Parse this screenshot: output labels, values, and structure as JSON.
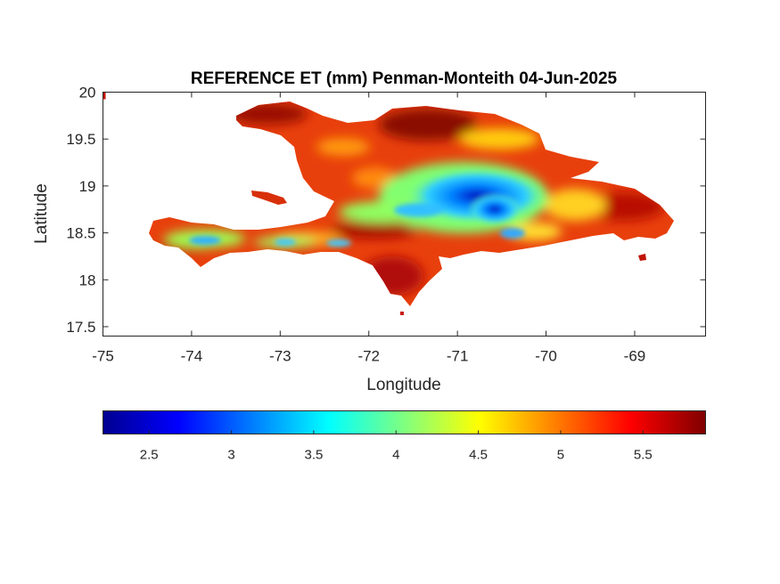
{
  "map": {
    "title": "REFERENCE ET (mm) Penman-Monteith 04-Jun-2025",
    "xlabel": "Longitude",
    "ylabel": "Latitude",
    "xlim": [
      -75.0,
      -68.2
    ],
    "ylim": [
      17.4,
      20.0
    ],
    "x_ticks": [
      "-75",
      "-74",
      "-73",
      "-72",
      "-71",
      "-70",
      "-69"
    ],
    "y_ticks": [
      "20",
      "19.5",
      "19",
      "18.5",
      "18",
      "17.5"
    ],
    "region": "Hispaniola",
    "colormap": "jet",
    "colors": {
      "low": "#00008f",
      "mid": "#ffff00",
      "high": "#800000",
      "land_dominant": "#e83a0a"
    }
  },
  "colorbar": {
    "range": [
      2.22,
      5.88
    ],
    "tick_labels": [
      "2.5",
      "3",
      "3.5",
      "4",
      "4.5",
      "5",
      "5.5"
    ],
    "tick_values": [
      2.5,
      3.0,
      3.5,
      4.0,
      4.5,
      5.0,
      5.5
    ]
  }
}
